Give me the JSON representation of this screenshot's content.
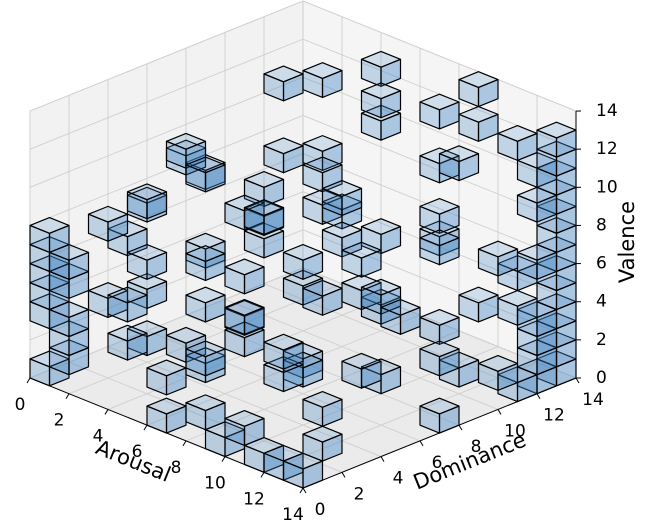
{
  "chart_data": {
    "type": "voxel",
    "xlabel": "Arousal",
    "ylabel": "Dominance",
    "zlabel": "Valence",
    "xlim": [
      0,
      14
    ],
    "ylim": [
      0,
      14
    ],
    "zlim": [
      0,
      14
    ],
    "xticks": [
      0,
      2,
      4,
      6,
      8,
      10,
      12,
      14
    ],
    "yticks": [
      0,
      2,
      4,
      6,
      8,
      10,
      12,
      14
    ],
    "zticks": [
      0,
      2,
      4,
      6,
      8,
      10,
      12,
      14
    ],
    "grid": true,
    "color": "#3a7fc0",
    "alpha": 0.4,
    "voxels": [
      [
        0,
        0,
        0
      ],
      [
        0,
        0,
        3
      ],
      [
        0,
        0,
        4
      ],
      [
        0,
        0,
        5
      ],
      [
        0,
        0,
        6
      ],
      [
        0,
        0,
        7
      ],
      [
        1,
        0,
        1
      ],
      [
        1,
        0,
        2
      ],
      [
        1,
        0,
        3
      ],
      [
        1,
        0,
        5
      ],
      [
        1,
        0,
        6
      ],
      [
        2,
        1,
        4
      ],
      [
        2,
        1,
        8
      ],
      [
        3,
        2,
        2
      ],
      [
        3,
        2,
        6
      ],
      [
        3,
        2,
        9
      ],
      [
        4,
        0,
        3
      ],
      [
        4,
        0,
        5
      ],
      [
        4,
        1,
        10
      ],
      [
        5,
        3,
        1
      ],
      [
        5,
        3,
        7
      ],
      [
        5,
        3,
        11
      ],
      [
        6,
        0,
        0
      ],
      [
        6,
        0,
        2
      ],
      [
        6,
        2,
        5
      ],
      [
        6,
        4,
        9
      ],
      [
        7,
        1,
        3
      ],
      [
        7,
        1,
        8
      ],
      [
        7,
        5,
        12
      ],
      [
        8,
        0,
        1
      ],
      [
        8,
        2,
        4
      ],
      [
        8,
        3,
        10
      ],
      [
        9,
        0,
        0
      ],
      [
        9,
        1,
        6
      ],
      [
        9,
        4,
        2
      ],
      [
        9,
        6,
        8
      ],
      [
        10,
        0,
        1
      ],
      [
        10,
        2,
        3
      ],
      [
        10,
        5,
        11
      ],
      [
        11,
        0,
        0
      ],
      [
        11,
        1,
        5
      ],
      [
        11,
        3,
        7
      ],
      [
        12,
        0,
        0
      ],
      [
        12,
        2,
        2
      ],
      [
        12,
        4,
        9
      ],
      [
        13,
        0,
        0
      ],
      [
        13,
        1,
        1
      ],
      [
        13,
        3,
        4
      ],
      [
        13,
        5,
        6
      ],
      [
        13,
        7,
        0
      ],
      [
        13,
        7,
        3
      ],
      [
        13,
        8,
        2
      ],
      [
        13,
        9,
        5
      ],
      [
        13,
        10,
        1
      ],
      [
        13,
        10,
        7
      ],
      [
        13,
        11,
        0
      ],
      [
        13,
        11,
        4
      ],
      [
        13,
        12,
        0
      ],
      [
        13,
        12,
        1
      ],
      [
        13,
        12,
        2
      ],
      [
        13,
        12,
        3
      ],
      [
        13,
        12,
        6
      ],
      [
        13,
        12,
        9
      ],
      [
        13,
        13,
        0
      ],
      [
        13,
        13,
        1
      ],
      [
        13,
        13,
        2
      ],
      [
        13,
        13,
        3
      ],
      [
        13,
        13,
        4
      ],
      [
        13,
        13,
        5
      ],
      [
        13,
        13,
        6
      ],
      [
        13,
        13,
        7
      ],
      [
        13,
        13,
        8
      ],
      [
        13,
        13,
        9
      ],
      [
        13,
        13,
        10
      ],
      [
        13,
        13,
        11
      ],
      [
        13,
        13,
        12
      ],
      [
        12,
        12,
        5
      ],
      [
        12,
        13,
        10
      ],
      [
        11,
        13,
        11
      ],
      [
        11,
        9,
        3
      ],
      [
        10,
        10,
        8
      ],
      [
        10,
        12,
        12
      ],
      [
        9,
        11,
        6
      ],
      [
        9,
        13,
        13
      ],
      [
        8,
        8,
        4
      ],
      [
        8,
        12,
        9
      ],
      [
        7,
        10,
        2
      ],
      [
        7,
        13,
        11
      ],
      [
        6,
        9,
        7
      ],
      [
        6,
        11,
        12
      ],
      [
        5,
        8,
        3
      ],
      [
        5,
        12,
        10
      ],
      [
        4,
        10,
        6
      ],
      [
        4,
        13,
        12
      ],
      [
        3,
        7,
        1
      ],
      [
        3,
        11,
        8
      ],
      [
        2,
        9,
        5
      ],
      [
        2,
        12,
        11
      ],
      [
        1,
        6,
        9
      ],
      [
        1,
        10,
        3
      ],
      [
        0,
        8,
        7
      ],
      [
        0,
        12,
        10
      ],
      [
        0,
        5,
        2
      ],
      [
        1,
        3,
        6
      ],
      [
        2,
        5,
        0
      ],
      [
        3,
        4,
        11
      ],
      [
        4,
        6,
        4
      ],
      [
        5,
        6,
        9
      ],
      [
        6,
        7,
        0
      ],
      [
        7,
        6,
        6
      ],
      [
        8,
        6,
        11
      ],
      [
        9,
        8,
        0
      ],
      [
        10,
        7,
        5
      ],
      [
        11,
        6,
        9
      ],
      [
        12,
        8,
        8
      ],
      [
        12,
        9,
        12
      ]
    ]
  }
}
